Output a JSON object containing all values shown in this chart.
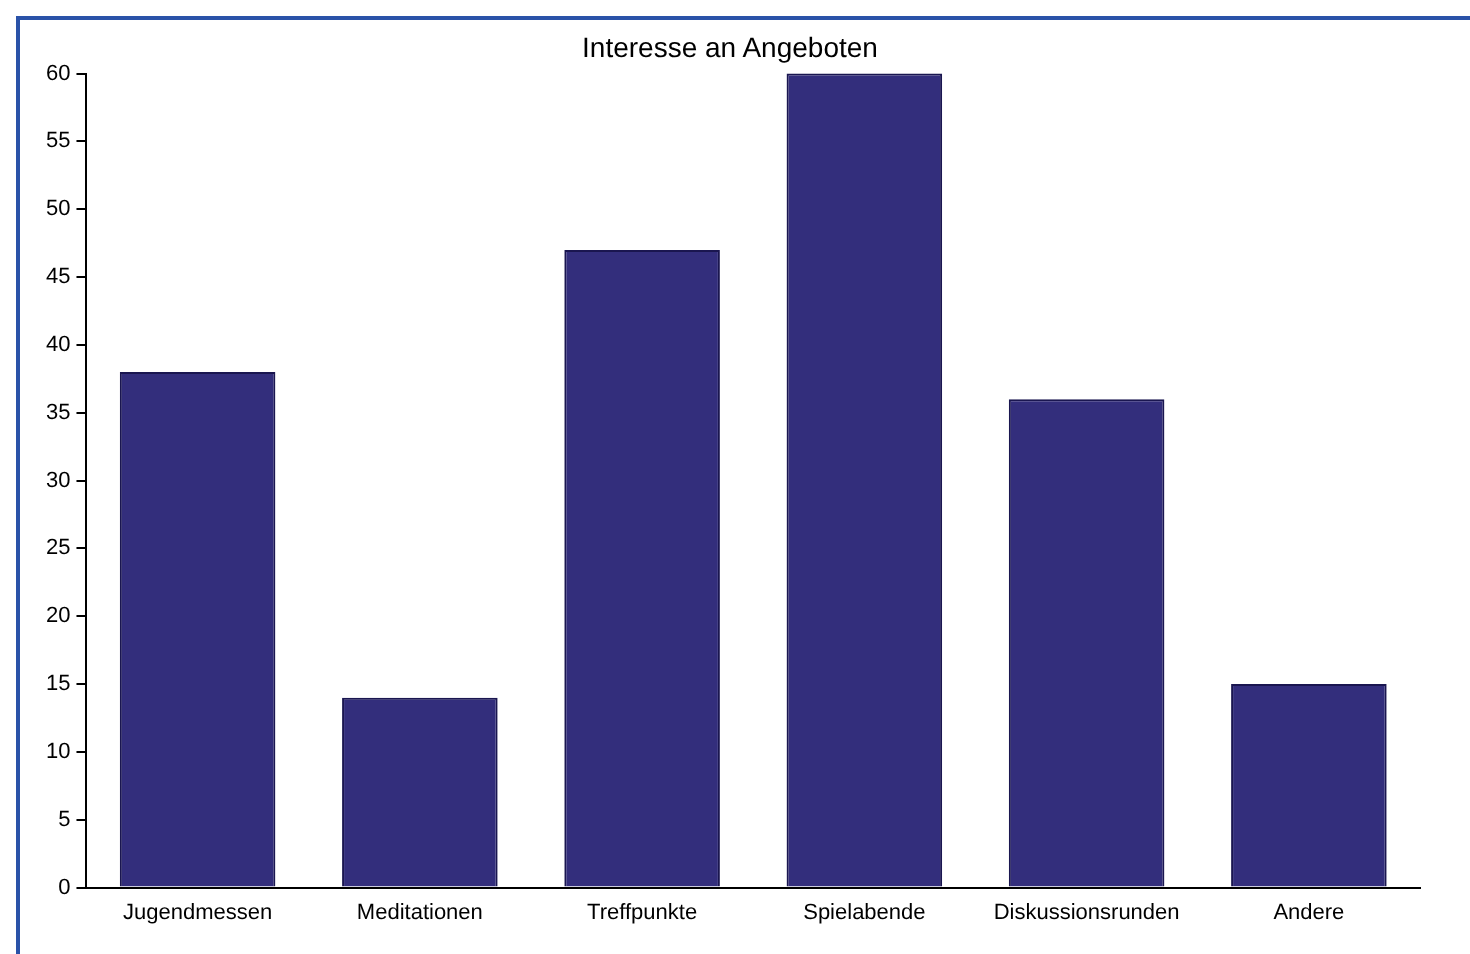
{
  "chart_data": {
    "type": "bar",
    "title": "Interesse an Angeboten",
    "categories": [
      "Jugendmessen",
      "Meditationen",
      "Treffpunkte",
      "Spielabende",
      "Diskussionsrunden",
      "Andere"
    ],
    "values": [
      38,
      14,
      47,
      60,
      36,
      15
    ],
    "color": "#332e7c",
    "ylim": [
      0,
      60
    ],
    "yticks": [
      0,
      5,
      10,
      15,
      20,
      25,
      30,
      35,
      40,
      45,
      50,
      55,
      60
    ],
    "grid": false,
    "legend": false
  }
}
